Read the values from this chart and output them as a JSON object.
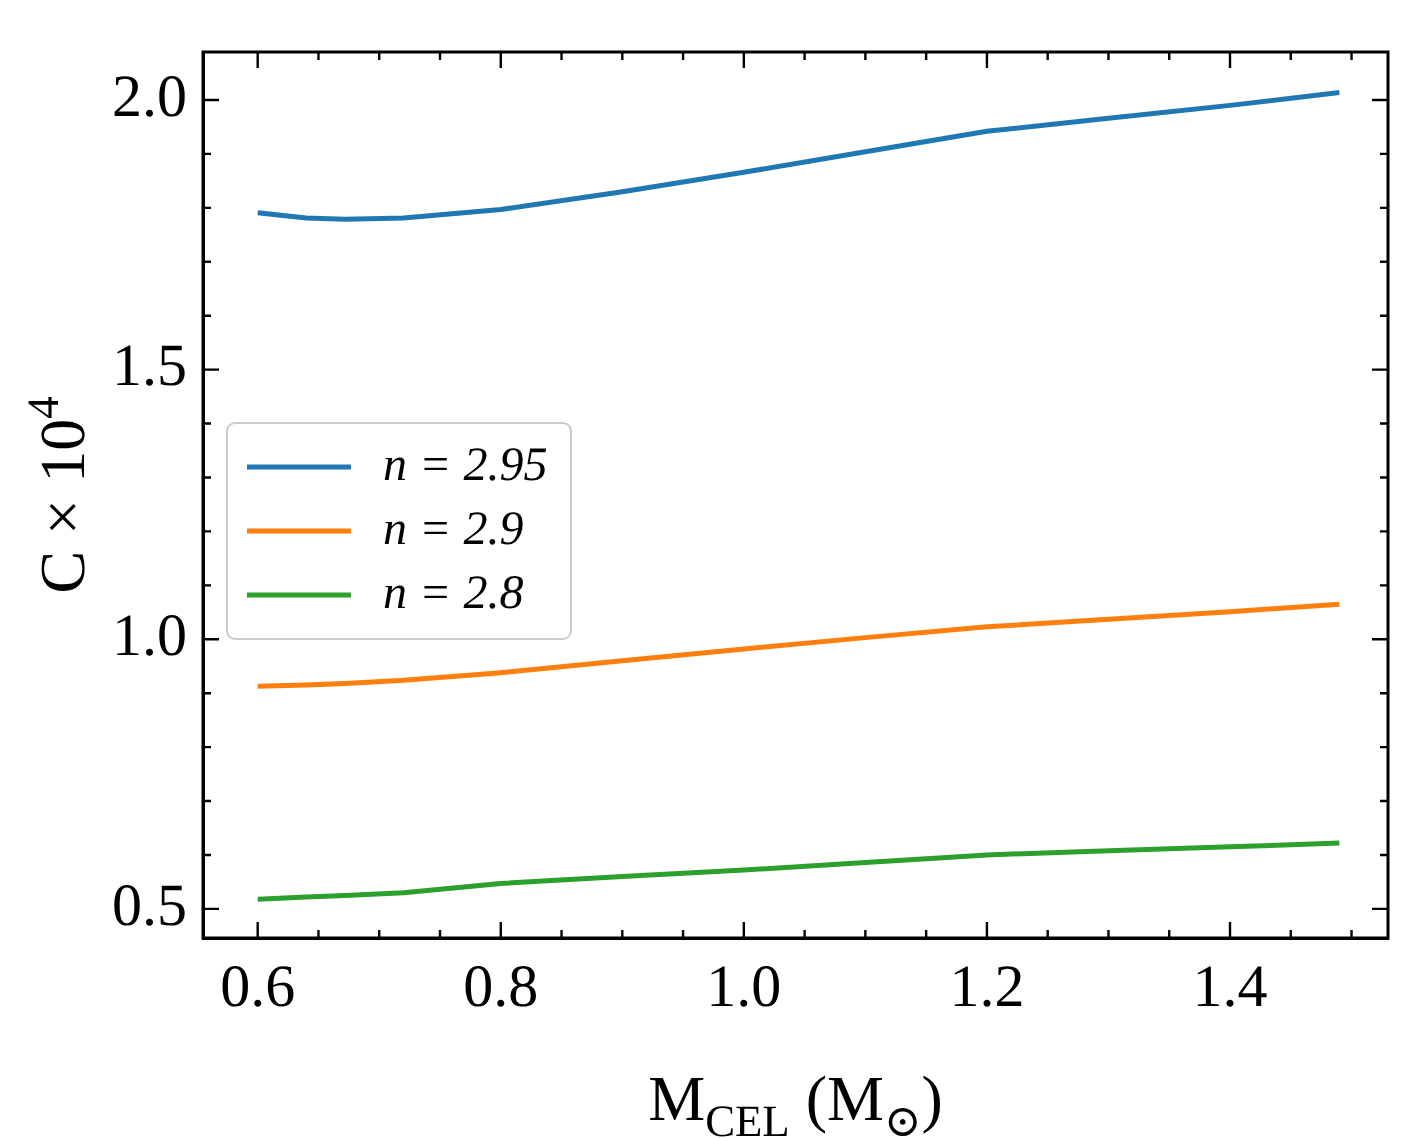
{
  "chart_data": {
    "type": "line",
    "xlabel": "M$_{CEL}$ (M$_{⊙}$)",
    "ylabel": "C × 10$^{4}$",
    "xlim": [
      0.555,
      1.53
    ],
    "ylim": [
      0.446,
      2.089
    ],
    "xticks": [
      0.6,
      {
        "value": 0.65,
        "label": null
      },
      {
        "value": 0.7,
        "label": null
      },
      {
        "value": 0.75,
        "label": null
      },
      {
        "value": 0.8,
        "label": "0.8"
      },
      {
        "value": 0.85,
        "label": null
      },
      {
        "value": 0.9,
        "label": null
      },
      {
        "value": 0.95,
        "label": null
      },
      {
        "value": 1.0,
        "label": "1.0"
      },
      {
        "value": 1.05,
        "label": null
      },
      {
        "value": 1.1,
        "label": null
      },
      {
        "value": 1.15,
        "label": null
      },
      {
        "value": 1.2,
        "label": "1.2"
      },
      {
        "value": 1.25,
        "label": null
      },
      {
        "value": 1.3,
        "label": null
      },
      {
        "value": 1.35,
        "label": null
      },
      {
        "value": 1.4,
        "label": "1.4"
      },
      {
        "value": 1.45,
        "label": null
      },
      {
        "value": 1.5,
        "label": null
      }
    ],
    "yticks": [
      {
        "value": 0.5,
        "label": "0.5"
      },
      {
        "value": 0.6,
        "label": null
      },
      {
        "value": 0.7,
        "label": null
      },
      {
        "value": 0.8,
        "label": null
      },
      {
        "value": 0.9,
        "label": null
      },
      {
        "value": 1.0,
        "label": "1.0"
      },
      {
        "value": 1.1,
        "label": null
      },
      {
        "value": 1.2,
        "label": null
      },
      {
        "value": 1.3,
        "label": null
      },
      {
        "value": 1.4,
        "label": null
      },
      {
        "value": 1.5,
        "label": "1.5"
      },
      {
        "value": 1.6,
        "label": null
      },
      {
        "value": 1.7,
        "label": null
      },
      {
        "value": 1.8,
        "label": null
      },
      {
        "value": 1.9,
        "label": null
      },
      {
        "value": 2.0,
        "label": "2.0"
      }
    ],
    "x": [
      0.6,
      0.64,
      0.672,
      0.72,
      0.8,
      0.9,
      1.0,
      1.1,
      1.2,
      1.3,
      1.4,
      1.49
    ],
    "series": [
      {
        "name": "n = 2.95",
        "color": "#1f77b4",
        "values": [
          1.791,
          1.781,
          1.779,
          1.781,
          1.797,
          1.83,
          1.866,
          1.904,
          1.942,
          1.966,
          1.99,
          2.014
        ]
      },
      {
        "name": "n = 2.9",
        "color": "#ff7f0e",
        "values": [
          0.913,
          0.915,
          0.918,
          0.924,
          0.938,
          0.96,
          0.982,
          1.003,
          1.023,
          1.037,
          1.051,
          1.065
        ]
      },
      {
        "name": "n = 2.8",
        "color": "#2ca02c",
        "values": [
          0.518,
          0.522,
          0.525,
          0.53,
          0.547,
          0.56,
          0.572,
          0.586,
          0.6,
          0.608,
          0.615,
          0.622
        ]
      }
    ],
    "legend": "center left",
    "grid": false,
    "marker": "none",
    "line_style": "solid"
  }
}
